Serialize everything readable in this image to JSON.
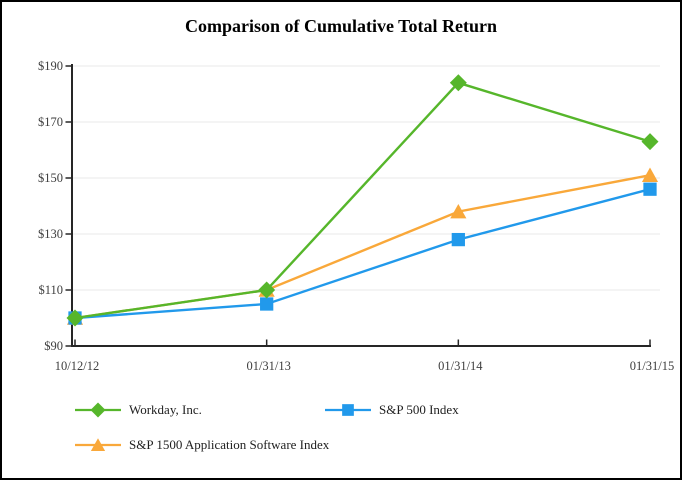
{
  "title": "Comparison of Cumulative Total Return",
  "chart_data": {
    "type": "line",
    "x_categories": [
      "10/12/12",
      "01/31/13",
      "01/31/14",
      "01/31/15"
    ],
    "series": [
      {
        "name": "Workday, Inc.",
        "marker": "diamond",
        "color": "#56B62B",
        "values": [
          100,
          110,
          184,
          163
        ]
      },
      {
        "name": "S&P 500 Index",
        "marker": "square",
        "color": "#2199EB",
        "values": [
          100,
          105,
          128,
          146
        ]
      },
      {
        "name": "S&P 1500 Application Software Index",
        "marker": "triangle",
        "color": "#F9A83A",
        "values": [
          100,
          110,
          138,
          151
        ]
      }
    ],
    "ylim": [
      90,
      190
    ],
    "ytick_step": 20,
    "ytick_labels": [
      "$90",
      "$110",
      "$130",
      "$150",
      "$170",
      "$190"
    ],
    "xlabel": "",
    "ylabel": "",
    "grid": true,
    "legend_position": "bottom",
    "axis_color": "#262626",
    "grid_color": "#E8E8E8",
    "tick_label_color": "#3E3E3E"
  }
}
